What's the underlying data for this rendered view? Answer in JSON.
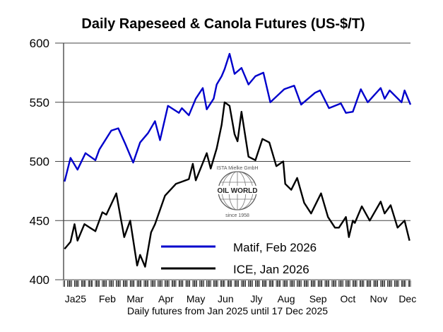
{
  "chart_data": {
    "type": "line",
    "title": "Daily Rapeseed & Canola Futures (US-$/T)",
    "xlabel": "Daily futures from Jan 2025 until 17 Dec 2025",
    "ylabel": "",
    "ylim": [
      400,
      600
    ],
    "yticks": [
      400,
      450,
      500,
      550,
      600
    ],
    "xlim": [
      "2025-01-02",
      "2025-12-17"
    ],
    "grid": "horizontal",
    "legend_position": "bottom-center",
    "month_labels": [
      {
        "label": "Ja25",
        "date": "2025-01-14"
      },
      {
        "label": "Feb",
        "date": "2025-02-15"
      },
      {
        "label": "Mar",
        "date": "2025-03-15"
      },
      {
        "label": "Apr",
        "date": "2025-04-15"
      },
      {
        "label": "May",
        "date": "2025-05-15"
      },
      {
        "label": "Jun",
        "date": "2025-06-14"
      },
      {
        "label": "Jly",
        "date": "2025-07-15"
      },
      {
        "label": "Aug",
        "date": "2025-08-14"
      },
      {
        "label": "Sep",
        "date": "2025-09-15"
      },
      {
        "label": "Oct",
        "date": "2025-10-15"
      },
      {
        "label": "Nov",
        "date": "2025-11-15"
      },
      {
        "label": "Dec",
        "date": "2025-12-14"
      }
    ],
    "series": [
      {
        "name": "Matif, Feb 2026",
        "color": "#0000cc",
        "points": [
          [
            "2025-01-03",
            483
          ],
          [
            "2025-01-09",
            503
          ],
          [
            "2025-01-16",
            493
          ],
          [
            "2025-01-24",
            507
          ],
          [
            "2025-02-03",
            501
          ],
          [
            "2025-02-07",
            510
          ],
          [
            "2025-02-19",
            526
          ],
          [
            "2025-02-26",
            528
          ],
          [
            "2025-03-05",
            515
          ],
          [
            "2025-03-13",
            499
          ],
          [
            "2025-03-20",
            516
          ],
          [
            "2025-03-28",
            524
          ],
          [
            "2025-04-04",
            534
          ],
          [
            "2025-04-09",
            518
          ],
          [
            "2025-04-17",
            547
          ],
          [
            "2025-04-28",
            541
          ],
          [
            "2025-05-01",
            545
          ],
          [
            "2025-05-08",
            539
          ],
          [
            "2025-05-15",
            553
          ],
          [
            "2025-05-22",
            562
          ],
          [
            "2025-05-26",
            544
          ],
          [
            "2025-06-02",
            553
          ],
          [
            "2025-06-05",
            565
          ],
          [
            "2025-06-10",
            572
          ],
          [
            "2025-06-13",
            578
          ],
          [
            "2025-06-18",
            591
          ],
          [
            "2025-06-23",
            574
          ],
          [
            "2025-06-30",
            579
          ],
          [
            "2025-07-07",
            565
          ],
          [
            "2025-07-14",
            572
          ],
          [
            "2025-07-22",
            575
          ],
          [
            "2025-07-29",
            550
          ],
          [
            "2025-08-12",
            561
          ],
          [
            "2025-08-22",
            564
          ],
          [
            "2025-08-29",
            548
          ],
          [
            "2025-09-12",
            558
          ],
          [
            "2025-09-17",
            560
          ],
          [
            "2025-09-26",
            545
          ],
          [
            "2025-10-08",
            549
          ],
          [
            "2025-10-13",
            541
          ],
          [
            "2025-10-20",
            542
          ],
          [
            "2025-10-28",
            561
          ],
          [
            "2025-11-04",
            550
          ],
          [
            "2025-11-17",
            562
          ],
          [
            "2025-11-21",
            553
          ],
          [
            "2025-11-26",
            560
          ],
          [
            "2025-12-08",
            550
          ],
          [
            "2025-12-11",
            560
          ],
          [
            "2025-12-17",
            548
          ]
        ]
      },
      {
        "name": "ICE, Jan 2026",
        "color": "#000000",
        "points": [
          [
            "2025-01-03",
            426
          ],
          [
            "2025-01-09",
            432
          ],
          [
            "2025-01-13",
            447
          ],
          [
            "2025-01-16",
            433
          ],
          [
            "2025-01-23",
            447
          ],
          [
            "2025-02-03",
            441
          ],
          [
            "2025-02-10",
            457
          ],
          [
            "2025-02-14",
            455
          ],
          [
            "2025-02-24",
            473
          ],
          [
            "2025-02-27",
            459
          ],
          [
            "2025-03-04",
            436
          ],
          [
            "2025-03-10",
            450
          ],
          [
            "2025-03-17",
            412
          ],
          [
            "2025-03-20",
            421
          ],
          [
            "2025-03-25",
            411
          ],
          [
            "2025-03-31",
            440
          ],
          [
            "2025-04-04",
            447
          ],
          [
            "2025-04-14",
            471
          ],
          [
            "2025-04-25",
            481
          ],
          [
            "2025-05-08",
            485
          ],
          [
            "2025-05-12",
            498
          ],
          [
            "2025-05-15",
            484
          ],
          [
            "2025-05-26",
            507
          ],
          [
            "2025-05-30",
            494
          ],
          [
            "2025-06-05",
            511
          ],
          [
            "2025-06-10",
            531
          ],
          [
            "2025-06-13",
            550
          ],
          [
            "2025-06-18",
            547
          ],
          [
            "2025-06-23",
            523
          ],
          [
            "2025-06-26",
            517
          ],
          [
            "2025-06-30",
            542
          ],
          [
            "2025-07-07",
            504
          ],
          [
            "2025-07-14",
            501
          ],
          [
            "2025-07-21",
            519
          ],
          [
            "2025-07-28",
            516
          ],
          [
            "2025-08-04",
            496
          ],
          [
            "2025-08-11",
            500
          ],
          [
            "2025-08-13",
            481
          ],
          [
            "2025-08-19",
            476
          ],
          [
            "2025-08-25",
            486
          ],
          [
            "2025-09-01",
            465
          ],
          [
            "2025-09-08",
            456
          ],
          [
            "2025-09-18",
            473
          ],
          [
            "2025-09-25",
            453
          ],
          [
            "2025-10-02",
            444
          ],
          [
            "2025-10-06",
            444
          ],
          [
            "2025-10-13",
            453
          ],
          [
            "2025-10-16",
            436
          ],
          [
            "2025-10-20",
            450
          ],
          [
            "2025-10-22",
            448
          ],
          [
            "2025-10-29",
            462
          ],
          [
            "2025-11-06",
            450
          ],
          [
            "2025-11-17",
            466
          ],
          [
            "2025-11-21",
            456
          ],
          [
            "2025-11-27",
            463
          ],
          [
            "2025-12-04",
            444
          ],
          [
            "2025-12-11",
            450
          ],
          [
            "2025-12-16",
            433
          ]
        ]
      }
    ]
  },
  "logo": {
    "top_text": "ISTA Mielke GmbH",
    "center_text": "OIL WORLD",
    "bottom_text": "since 1958"
  }
}
